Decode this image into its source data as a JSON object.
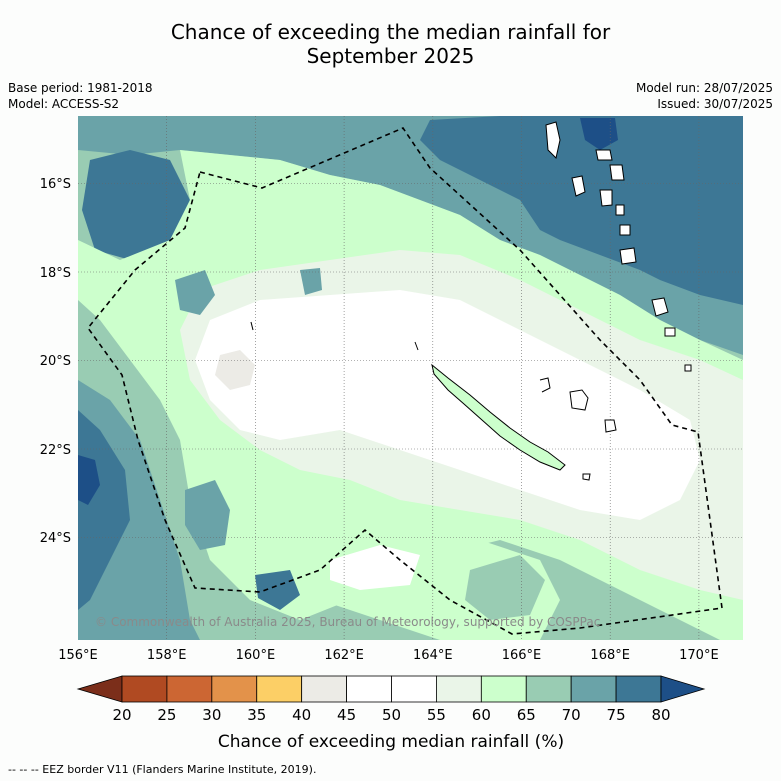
{
  "title_line1": "Chance of exceeding the median rainfall for",
  "title_line2": "September 2025",
  "base_period": "Base period: 1981-2018",
  "model": "Model: ACCESS-S2",
  "model_run": "Model run: 28/07/2025",
  "issued": "Issued: 30/07/2025",
  "copyright": "© Commonwealth of Australia 2025, Bureau of Meteorology, supported by COSPPac",
  "lon_ticks": [
    "156°E",
    "158°E",
    "160°E",
    "162°E",
    "164°E",
    "166°E",
    "168°E",
    "170°E"
  ],
  "lat_ticks": [
    "16°S",
    "18°S",
    "20°S",
    "22°S",
    "24°S"
  ],
  "colorbar": {
    "title": "Chance of exceeding median rainfall (%)",
    "labels": [
      "20",
      "25",
      "30",
      "35",
      "40",
      "45",
      "50",
      "55",
      "60",
      "65",
      "70",
      "75",
      "80"
    ],
    "colors": [
      "#7b2e1a",
      "#b04a22",
      "#cc6633",
      "#e3924a",
      "#fccf66",
      "#ecebe6",
      "#ffffff",
      "#ffffff",
      "#eaf5e8",
      "#ccffcc",
      "#99ccb3",
      "#6aa3a8",
      "#3d7795",
      "#1d4f87"
    ]
  },
  "legend_footer": "--  --  -- EEZ border V11 (Flanders Marine Institute, 2019)."
}
